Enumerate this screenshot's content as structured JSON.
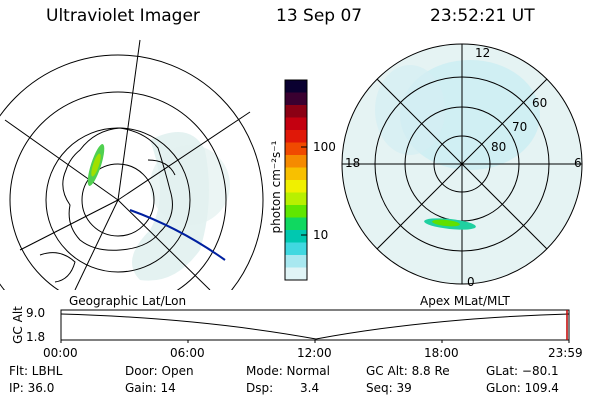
{
  "header": {
    "instrument": "Ultraviolet Imager",
    "date": "13 Sep 07",
    "time": "23:52:21 UT"
  },
  "left_map": {
    "label": "Geographic Lat/Lon"
  },
  "right_map": {
    "label": "Apex MLat/MLT",
    "mlt_labels": {
      "top": "12",
      "left": "18",
      "right": "6",
      "bottom": "0"
    },
    "lat_labels": [
      "60",
      "70",
      "80"
    ]
  },
  "colorbar": {
    "unit_label": "photon cm⁻²s⁻¹",
    "ticks": [
      "100",
      "10"
    ],
    "colors": [
      "#0a0030",
      "#3a0030",
      "#8b0014",
      "#c40010",
      "#e01808",
      "#f04a00",
      "#f58a00",
      "#f8c000",
      "#f0f000",
      "#b8f000",
      "#60e600",
      "#10d860",
      "#00c8b0",
      "#40d8e0",
      "#a8e8f0",
      "#e0f4f6"
    ]
  },
  "timeline": {
    "y_label": "GC Alt",
    "y_ticks": [
      "9.0",
      "1.8"
    ],
    "x_ticks": [
      "00:00",
      "06:00",
      "12:00",
      "18:00",
      "23:59"
    ]
  },
  "info": {
    "flt": "Flt: LBHL",
    "door": "Door: Open",
    "mode": "Mode: Normal",
    "gc_alt": "GC Alt: 8.8 Re",
    "glat": "GLat: −80.1",
    "ip": "IP: 36.0",
    "gain": "Gain: 14",
    "dsp_label": "Dsp:",
    "dsp_value": "3.4",
    "seq": "Seq: 39",
    "glon": "GLon: 109.4"
  }
}
